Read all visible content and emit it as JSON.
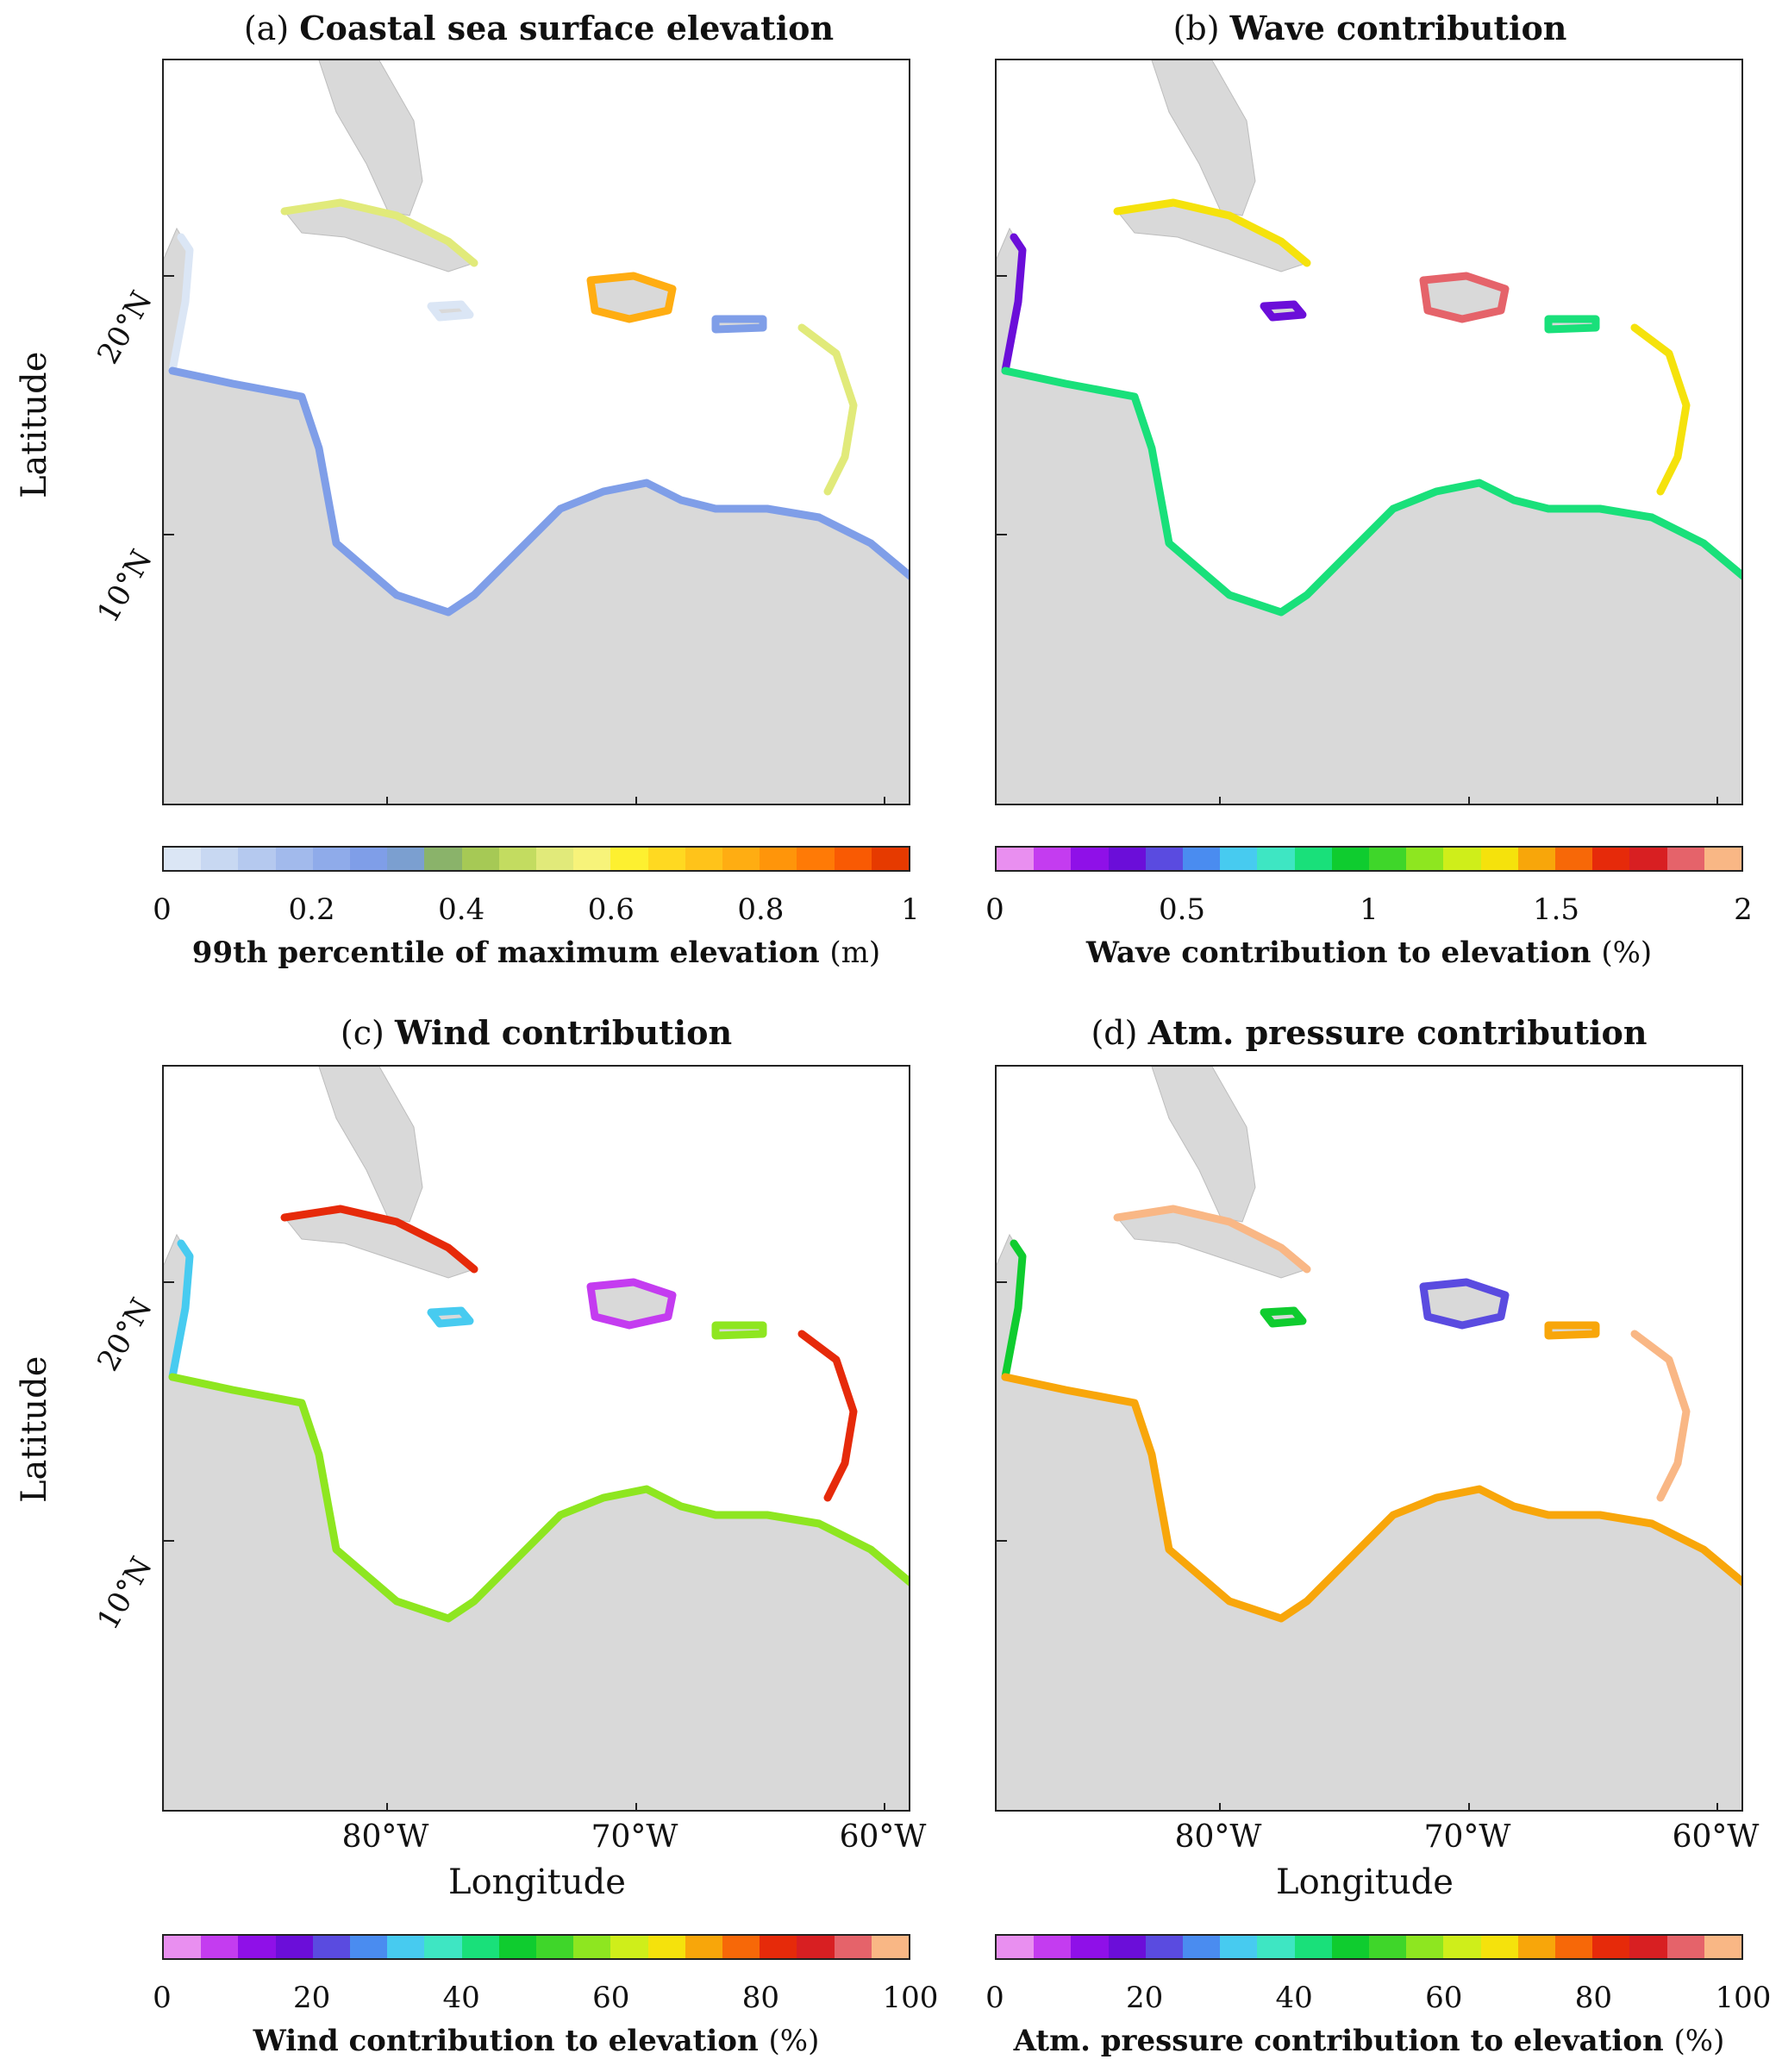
{
  "figure": {
    "y_axis_title": "Latitude",
    "x_axis_title": "Longitude",
    "lat_ticks": [
      "20°N",
      "10°N"
    ],
    "lon_ticks": [
      "80°W",
      "70°W",
      "60°W"
    ]
  },
  "panels": [
    {
      "tag": "(a)",
      "title": "Coastal sea surface elevation",
      "colorbar_label": "99th percentile of maximum elevation",
      "colorbar_unit": "(m)",
      "colorbar_ticks": [
        "0",
        "0.2",
        "0.4",
        "0.6",
        "0.8",
        "1"
      ],
      "colormap": [
        "#dbe6f5",
        "#c8d8f2",
        "#b5c9ef",
        "#a2baec",
        "#8fabea",
        "#7f9ee8",
        "#7b9fd0",
        "#8ab36a",
        "#a6c955",
        "#c3dc60",
        "#e1ea7a",
        "#f7f37a",
        "#fdf030",
        "#ffd921",
        "#ffc31a",
        "#ffad12",
        "#ff950a",
        "#ff7a06",
        "#f95a03",
        "#e63a00"
      ]
    },
    {
      "tag": "(b)",
      "title": "Wave contribution",
      "colorbar_label": "Wave contribution to elevation",
      "colorbar_unit": "(%)",
      "colorbar_ticks": [
        "0",
        "0.5",
        "1",
        "1.5",
        "2"
      ],
      "colormap": [
        "#e98ff0",
        "#c43cf0",
        "#8f10e8",
        "#6b0ed9",
        "#5a4be0",
        "#4a8cf0",
        "#47cbf0",
        "#3ee6c3",
        "#19e07a",
        "#0fcc2f",
        "#3fd62a",
        "#8ee620",
        "#cfee1a",
        "#f5e20c",
        "#f8a60a",
        "#f76808",
        "#e62a0a",
        "#d81f22",
        "#e5636a",
        "#f9b785"
      ]
    },
    {
      "tag": "(c)",
      "title": "Wind contribution",
      "colorbar_label": "Wind contribution to elevation",
      "colorbar_unit": "(%)",
      "colorbar_ticks": [
        "0",
        "20",
        "40",
        "60",
        "80",
        "100"
      ],
      "colormap": [
        "#e98ff0",
        "#c43cf0",
        "#8f10e8",
        "#6b0ed9",
        "#5a4be0",
        "#4a8cf0",
        "#47cbf0",
        "#3ee6c3",
        "#19e07a",
        "#0fcc2f",
        "#3fd62a",
        "#8ee620",
        "#cfee1a",
        "#f5e20c",
        "#f8a60a",
        "#f76808",
        "#e62a0a",
        "#d81f22",
        "#e5636a",
        "#f9b785"
      ]
    },
    {
      "tag": "(d)",
      "title": "Atm. pressure contribution",
      "colorbar_label": "Atm. pressure contribution to elevation",
      "colorbar_unit": "(%)",
      "colorbar_ticks": [
        "0",
        "20",
        "40",
        "60",
        "80",
        "100"
      ],
      "colormap": [
        "#e98ff0",
        "#c43cf0",
        "#8f10e8",
        "#6b0ed9",
        "#5a4be0",
        "#4a8cf0",
        "#47cbf0",
        "#3ee6c3",
        "#19e07a",
        "#0fcc2f",
        "#3fd62a",
        "#8ee620",
        "#cfee1a",
        "#f5e20c",
        "#f8a60a",
        "#f76808",
        "#e62a0a",
        "#d81f22",
        "#e5636a",
        "#f9b785"
      ]
    }
  ]
}
